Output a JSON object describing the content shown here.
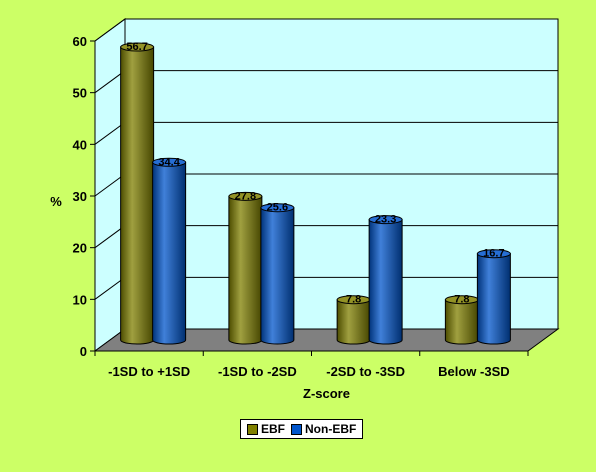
{
  "chart_data": {
    "type": "bar",
    "title": "",
    "xlabel": "Z-score",
    "ylabel": "%",
    "ylim": [
      0,
      60
    ],
    "yticks": [
      0,
      10,
      20,
      30,
      40,
      50,
      60
    ],
    "categories": [
      "-1SD to +1SD",
      "-1SD to -2SD",
      "-2SD to -3SD",
      "Below -3SD"
    ],
    "series": [
      {
        "name": "EBF",
        "values": [
          56.7,
          27.8,
          7.8,
          7.8
        ],
        "color": "#808000"
      },
      {
        "name": "Non-EBF",
        "values": [
          34.4,
          25.6,
          23.3,
          16.7
        ],
        "color": "#0055cc"
      }
    ],
    "data_labels": [
      [
        "56.7",
        "27.8",
        "7.8",
        "7.8"
      ],
      [
        "34.4",
        "25.6",
        "23.3",
        "16.7"
      ]
    ],
    "grid": true,
    "legend_position": "bottom",
    "colors": {
      "background": "#ccff66",
      "plot_back": "#ccffff",
      "floor": "#808080",
      "gridline": "#000000"
    }
  }
}
